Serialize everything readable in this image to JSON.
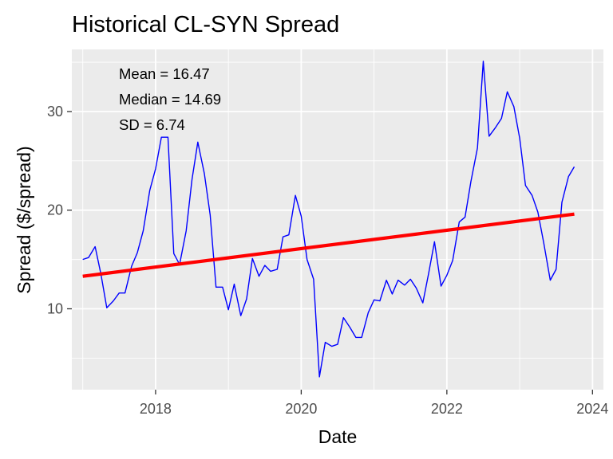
{
  "chart_data": {
    "type": "line",
    "title": "Historical CL-SYN Spread",
    "xlabel": "Date",
    "ylabel": "Spread ($/spread)",
    "xlim": [
      2016.85,
      2024.15
    ],
    "ylim": [
      1.8,
      36.3
    ],
    "x_ticks": [
      {
        "value": 2018,
        "label": "2018"
      },
      {
        "value": 2020,
        "label": "2020"
      },
      {
        "value": 2022,
        "label": "2022"
      },
      {
        "value": 2024,
        "label": "2024"
      }
    ],
    "y_ticks": [
      {
        "value": 10,
        "label": "10"
      },
      {
        "value": 20,
        "label": "20"
      },
      {
        "value": 30,
        "label": "30"
      }
    ],
    "y_minor_ticks": [
      5,
      15,
      25,
      35
    ],
    "x_minor_ticks": [
      2017,
      2019,
      2021,
      2023
    ],
    "grid": true,
    "background": "#ebebeb",
    "series": [
      {
        "color": "#0000ff",
        "x": [
          2017.0,
          2017.08,
          2017.17,
          2017.25,
          2017.33,
          2017.42,
          2017.5,
          2017.58,
          2017.67,
          2017.75,
          2017.83,
          2017.92,
          2018.0,
          2018.08,
          2018.17,
          2018.25,
          2018.33,
          2018.42,
          2018.5,
          2018.58,
          2018.67,
          2018.75,
          2018.83,
          2018.92,
          2019.0,
          2019.08,
          2019.17,
          2019.25,
          2019.33,
          2019.42,
          2019.5,
          2019.58,
          2019.67,
          2019.75,
          2019.83,
          2019.92,
          2020.0,
          2020.08,
          2020.17,
          2020.25,
          2020.33,
          2020.42,
          2020.5,
          2020.58,
          2020.67,
          2020.75,
          2020.83,
          2020.92,
          2021.0,
          2021.08,
          2021.17,
          2021.25,
          2021.33,
          2021.42,
          2021.5,
          2021.58,
          2021.67,
          2021.75,
          2021.83,
          2021.92,
          2022.0,
          2022.08,
          2022.17,
          2022.25,
          2022.33,
          2022.42,
          2022.5,
          2022.58,
          2022.67,
          2022.75,
          2022.83,
          2022.92,
          2023.0,
          2023.08,
          2023.17,
          2023.25,
          2023.33,
          2023.42,
          2023.5,
          2023.58,
          2023.67,
          2023.75
        ],
        "y": [
          15.0,
          15.2,
          16.3,
          13.5,
          10.1,
          10.8,
          11.6,
          11.6,
          14.3,
          15.7,
          17.9,
          22.0,
          24.2,
          27.4,
          27.4,
          15.6,
          14.5,
          17.9,
          23.1,
          26.9,
          23.7,
          19.5,
          12.2,
          12.2,
          9.9,
          12.5,
          9.3,
          11.0,
          15.1,
          13.3,
          14.4,
          13.8,
          14.0,
          17.3,
          17.5,
          21.5,
          19.4,
          15.0,
          13.0,
          3.1,
          6.6,
          6.2,
          6.4,
          9.1,
          8.1,
          7.1,
          7.1,
          9.6,
          10.9,
          10.8,
          12.9,
          11.5,
          12.9,
          12.4,
          13.0,
          12.1,
          10.6,
          13.6,
          16.8,
          12.3,
          13.4,
          14.9,
          18.8,
          19.3,
          22.9,
          26.3,
          35.1,
          27.5,
          28.4,
          29.3,
          32.0,
          30.5,
          27.3,
          22.5,
          21.5,
          19.8,
          16.7,
          12.9,
          14.0,
          20.8,
          23.4,
          24.4
        ]
      },
      {
        "color": "#ff0000",
        "x": [
          2017.0,
          2023.75
        ],
        "y": [
          13.3,
          19.6
        ]
      }
    ],
    "annotations": [
      "Mean = 16.47",
      "Median = 14.69",
      "SD = 6.74"
    ]
  }
}
